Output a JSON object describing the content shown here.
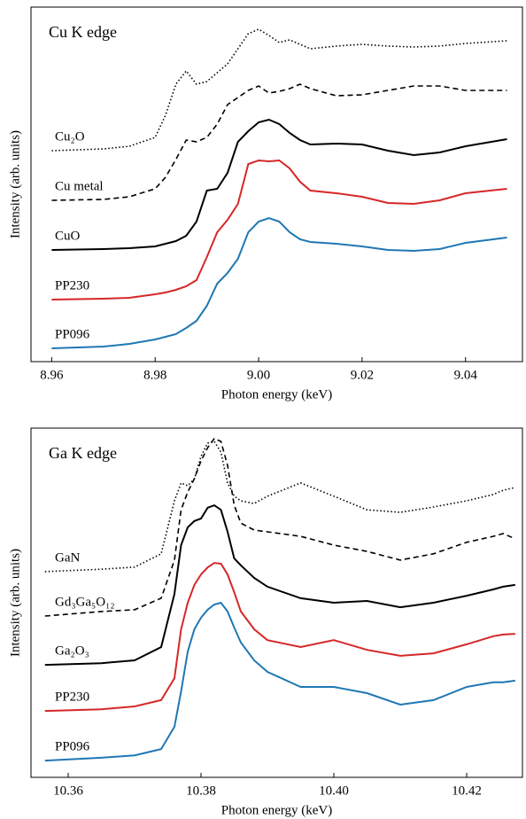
{
  "chart_data": [
    {
      "type": "line",
      "title": "Cu K edge",
      "xlabel": "Photon energy (keV)",
      "ylabel": "Intensity (arb. units)",
      "x": [
        8.96,
        8.97,
        8.975,
        8.98,
        8.982,
        8.984,
        8.986,
        8.988,
        8.99,
        8.992,
        8.994,
        8.996,
        8.998,
        9.0,
        9.002,
        9.004,
        9.006,
        9.008,
        9.01,
        9.015,
        9.02,
        9.025,
        9.03,
        9.035,
        9.04,
        9.048
      ],
      "xlim": [
        8.956,
        9.051
      ],
      "ylim": [
        0,
        100
      ],
      "xticks": [
        8.96,
        8.98,
        {
          "value": 9.0,
          "label": "9.00"
        },
        9.02,
        9.04
      ],
      "series": [
        {
          "name": "Cu₂O",
          "color": "#000000",
          "dash": "dotted",
          "values": [
            59.5,
            60,
            60.75,
            63.25,
            69.5,
            78.25,
            82,
            78.25,
            79,
            81.5,
            84,
            88.25,
            92.5,
            93.75,
            92,
            90,
            90.75,
            89.5,
            88.25,
            89,
            89.5,
            89,
            88.75,
            89,
            89.75,
            90.5
          ]
        },
        {
          "name": "Cu metal",
          "color": "#000000",
          "dash": "dashed",
          "values": [
            45.5,
            45.75,
            46.5,
            48.75,
            52,
            57,
            62.5,
            62,
            63.25,
            67,
            72.5,
            74.5,
            76.5,
            77.75,
            75.75,
            76.25,
            77,
            78.25,
            77,
            75,
            75.25,
            76.5,
            77.75,
            77.75,
            76.5,
            76.5
          ]
        },
        {
          "name": "CuO",
          "color": "#000000",
          "dash": "solid",
          "values": [
            31.5,
            31.75,
            32,
            32.5,
            33.25,
            34,
            35.5,
            39.5,
            48.25,
            48.75,
            53.25,
            62,
            65,
            67.5,
            68.25,
            67,
            64.5,
            62.5,
            61.25,
            61.5,
            61.25,
            59.5,
            58.25,
            59,
            60.75,
            62.75
          ]
        },
        {
          "name": "PP230",
          "color": "#d62728",
          "dash": "solid",
          "values": [
            17.5,
            17.75,
            18,
            19,
            19.5,
            20.25,
            21.25,
            23,
            29.5,
            36.5,
            40,
            44.5,
            55.75,
            56.75,
            56.5,
            56.75,
            54.5,
            50.75,
            48.25,
            47.5,
            46.5,
            44.75,
            44.5,
            45.5,
            47.5,
            48.75
          ]
        },
        {
          "name": "PP096",
          "color": "#1f77b4",
          "dash": "solid",
          "values": [
            3.75,
            4.25,
            5,
            6.25,
            7,
            7.75,
            9.5,
            11.5,
            15.75,
            22,
            25,
            29,
            36.5,
            39.5,
            40.5,
            39.5,
            36.5,
            34.5,
            33.75,
            33.25,
            32.5,
            31.5,
            31.25,
            31.75,
            33.5,
            35
          ]
        }
      ]
    },
    {
      "type": "line",
      "title": "Ga K edge",
      "xlabel": "Photon energy (keV)",
      "ylabel": "Intensity (arb. units)",
      "x": [
        10.3565,
        10.365,
        10.37,
        10.374,
        10.376,
        10.377,
        10.378,
        10.379,
        10.38,
        10.381,
        10.382,
        10.383,
        10.384,
        10.385,
        10.386,
        10.388,
        10.39,
        10.395,
        10.4,
        10.405,
        10.41,
        10.415,
        10.42,
        10.424,
        10.4255,
        10.4273
      ],
      "xlim": [
        10.3544,
        10.4284
      ],
      "ylim": [
        0,
        100
      ],
      "xticks": [
        10.36,
        10.38,
        {
          "value": 10.4,
          "label": "10.40"
        },
        10.42
      ],
      "series": [
        {
          "name": "GaN",
          "color": "#000000",
          "dash": "dotted",
          "values": [
            58.9,
            59.6,
            60.2,
            64.0,
            79.2,
            84.3,
            83.5,
            85.5,
            91.9,
            95.7,
            96.2,
            93.1,
            84.3,
            80.5,
            79.2,
            78.4,
            80.5,
            84.3,
            80.5,
            76.6,
            75.9,
            77.4,
            79.2,
            81.0,
            82.2,
            83.0
          ]
        },
        {
          "name": "Gd₃Ga₅O₁₂",
          "color": "#000000",
          "dash": "dashed",
          "values": [
            46.2,
            47.5,
            48.0,
            51.3,
            62.2,
            76.6,
            81.7,
            85.5,
            90.6,
            94.4,
            97.0,
            96.2,
            89.3,
            77.9,
            72.8,
            70.8,
            70.3,
            69.0,
            66.5,
            64.7,
            62.2,
            64.0,
            67.3,
            69.0,
            69.8,
            68.3
          ]
        },
        {
          "name": "Ga₂O₃",
          "color": "#000000",
          "dash": "solid",
          "values": [
            32.2,
            32.7,
            33.5,
            37.3,
            52.5,
            66.5,
            71.6,
            73.4,
            74.1,
            77.2,
            77.9,
            76.6,
            70.3,
            62.7,
            60.7,
            57.1,
            54.6,
            51.3,
            50.0,
            50.5,
            48.7,
            50.0,
            52.0,
            53.8,
            54.6,
            55.1
          ]
        },
        {
          "name": "PP230",
          "color": "#d62728",
          "dash": "solid",
          "values": [
            19.0,
            19.5,
            20.3,
            22.1,
            28.4,
            42.4,
            50.0,
            55.1,
            58.1,
            60.1,
            61.4,
            61.2,
            58.1,
            53.0,
            47.5,
            42.4,
            39.3,
            37.3,
            39.3,
            36.5,
            34.8,
            35.5,
            38.1,
            40.4,
            40.9,
            41.1
          ]
        },
        {
          "name": "PP096",
          "color": "#1f77b4",
          "dash": "solid",
          "values": [
            4.8,
            5.6,
            6.3,
            8.1,
            14.5,
            24.6,
            36.0,
            42.4,
            45.7,
            48.0,
            49.5,
            50.0,
            47.5,
            42.9,
            38.6,
            33.5,
            30.2,
            25.9,
            25.9,
            24.1,
            20.8,
            22.1,
            25.9,
            27.2,
            27.2,
            27.7
          ]
        }
      ]
    }
  ]
}
